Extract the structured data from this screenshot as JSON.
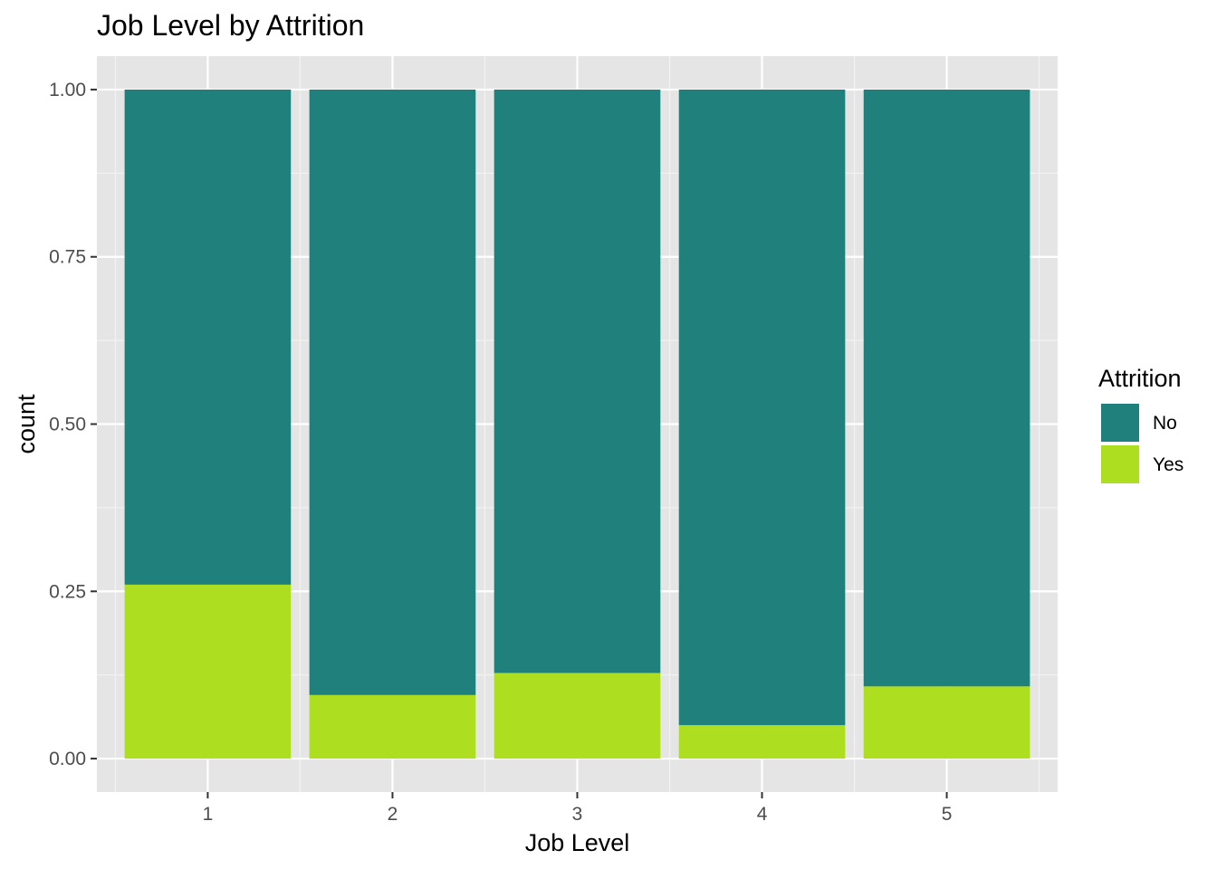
{
  "chart_data": {
    "type": "bar",
    "stacked": true,
    "title": "Job Level by Attrition",
    "xlabel": "Job Level",
    "ylabel": "count",
    "categories": [
      "1",
      "2",
      "3",
      "4",
      "5"
    ],
    "ylim": [
      -0.05,
      1.05
    ],
    "yticks": [
      0.0,
      0.25,
      0.5,
      0.75,
      1.0
    ],
    "ytick_labels": [
      "0.00",
      "0.25",
      "0.50",
      "0.75",
      "1.00"
    ],
    "grid": true,
    "legend": {
      "title": "Attrition",
      "position": "right",
      "entries": [
        "No",
        "Yes"
      ]
    },
    "series": [
      {
        "name": "Yes",
        "color": "#ADDE1F",
        "values": [
          0.26,
          0.095,
          0.128,
          0.05,
          0.108
        ]
      },
      {
        "name": "No",
        "color": "#20817C",
        "values": [
          0.74,
          0.905,
          0.872,
          0.95,
          0.892
        ]
      }
    ],
    "colors": {
      "panel_background": "#E5E5E5",
      "grid_major": "#FFFFFF",
      "grid_minor": "#F2F2F2",
      "tick_mark": "#333333"
    }
  }
}
